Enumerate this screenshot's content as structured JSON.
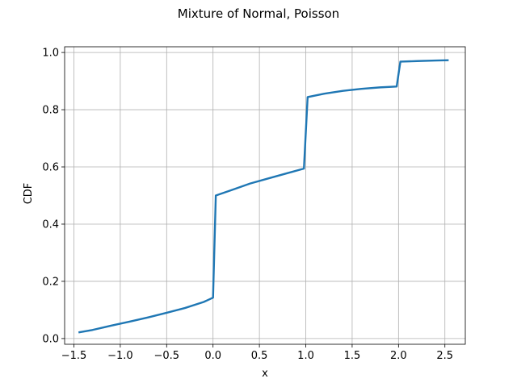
{
  "chart_data": {
    "type": "line",
    "title": "Mixture of Normal, Poisson",
    "xlabel": "x",
    "ylabel": "CDF",
    "xlim": [
      -1.6,
      2.72
    ],
    "ylim": [
      -0.02,
      1.02
    ],
    "xticks": [
      -1.5,
      -1.0,
      -0.5,
      0.0,
      0.5,
      1.0,
      1.5,
      2.0,
      2.5
    ],
    "xtick_labels": [
      "−1.5",
      "−1.0",
      "−0.5",
      "0.0",
      "0.5",
      "1.0",
      "1.5",
      "2.0",
      "2.5"
    ],
    "yticks": [
      0.0,
      0.2,
      0.4,
      0.6,
      0.8,
      1.0
    ],
    "ytick_labels": [
      "0.0",
      "0.2",
      "0.4",
      "0.6",
      "0.8",
      "1.0"
    ],
    "grid": true,
    "legend": "none",
    "series": [
      {
        "color": "#1f77b4",
        "x": [
          -1.44,
          -1.3,
          -1.1,
          -0.9,
          -0.7,
          -0.5,
          -0.3,
          -0.1,
          0.0,
          0.03,
          0.2,
          0.4,
          0.6,
          0.8,
          0.98,
          1.02,
          1.2,
          1.4,
          1.6,
          1.8,
          1.98,
          2.02,
          2.2,
          2.4,
          2.53
        ],
        "y": [
          0.022,
          0.03,
          0.045,
          0.059,
          0.074,
          0.09,
          0.107,
          0.128,
          0.143,
          0.5,
          0.519,
          0.542,
          0.56,
          0.578,
          0.594,
          0.844,
          0.856,
          0.866,
          0.873,
          0.878,
          0.881,
          0.968,
          0.97,
          0.972,
          0.973
        ]
      }
    ]
  }
}
